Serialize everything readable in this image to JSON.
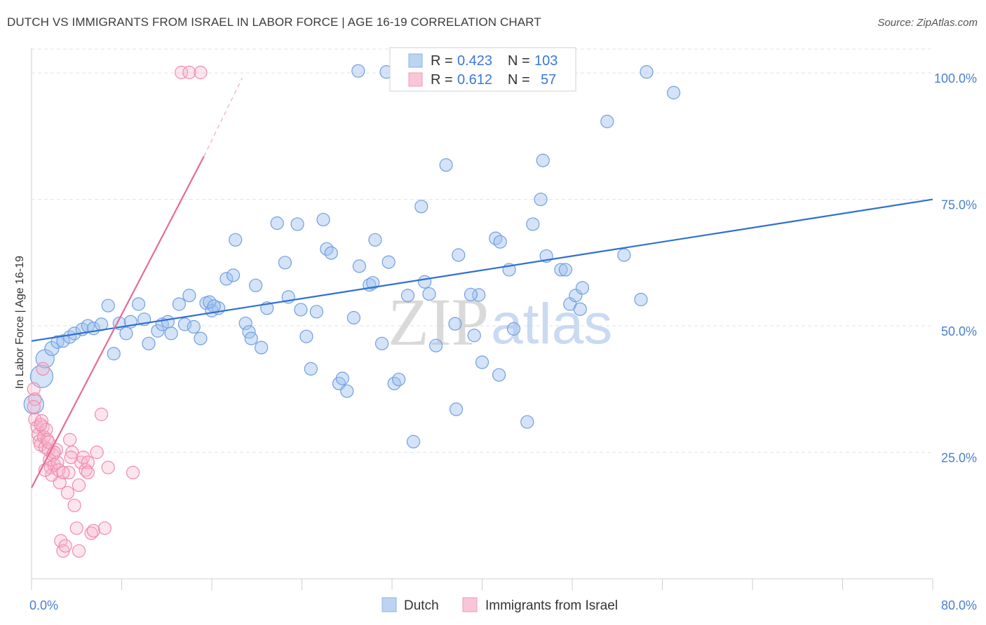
{
  "header": {
    "title": "DUTCH VS IMMIGRANTS FROM ISRAEL IN LABOR FORCE | AGE 16-19 CORRELATION CHART",
    "source": "Source: ZipAtlas.com"
  },
  "watermark": {
    "zip": "ZIP",
    "atlas": "atlas"
  },
  "colors": {
    "dutch": "#6fa0e0",
    "dutch_line": "#2f6fd0",
    "israel": "#f08aab",
    "israel_line": "#e46c95",
    "axis_text": "#4a7fd0"
  },
  "chart_data": {
    "type": "scatter",
    "title": "DUTCH VS IMMIGRANTS FROM ISRAEL IN LABOR FORCE | AGE 16-19 CORRELATION CHART",
    "xlabel": "",
    "ylabel": "In Labor Force | Age 16-19",
    "xlim": [
      0,
      80
    ],
    "ylim": [
      0,
      105
    ],
    "x_tick_labels": [
      "0.0%",
      "80.0%"
    ],
    "y_ticks": [
      25,
      50,
      75,
      100
    ],
    "y_tick_labels": [
      "25.0%",
      "50.0%",
      "75.0%",
      "100.0%"
    ],
    "grid": true,
    "legend": {
      "placement": "top-center",
      "entries": [
        {
          "r_label": "R =",
          "r_value": "0.423",
          "n_label": "N =",
          "n_value": "103"
        },
        {
          "r_label": "R =",
          "r_value": "0.612",
          "n_label": "N =",
          "n_value": "57"
        }
      ]
    },
    "bottom_legend": [
      "Dutch",
      "Immigrants from Israel"
    ],
    "series": [
      {
        "name": "Dutch",
        "trend": {
          "x": [
            0,
            80
          ],
          "y": [
            47,
            75
          ]
        },
        "points": [
          [
            0.2,
            34.5,
            14
          ],
          [
            0.9,
            40,
            16
          ],
          [
            1.2,
            43.5,
            13
          ],
          [
            1.8,
            45.5,
            10
          ],
          [
            2.3,
            46.8,
            9
          ],
          [
            2.8,
            47,
            9
          ],
          [
            3.4,
            47.8,
            9
          ],
          [
            3.8,
            48.5,
            9
          ],
          [
            4.5,
            49.3,
            9
          ],
          [
            5.0,
            50,
            9
          ],
          [
            5.5,
            49.5,
            9
          ],
          [
            6.2,
            50.3,
            9
          ],
          [
            6.8,
            54,
            9
          ],
          [
            7.3,
            44.5,
            9
          ],
          [
            7.8,
            50.5,
            9
          ],
          [
            8.4,
            48.5,
            9
          ],
          [
            9.5,
            54.3,
            9
          ],
          [
            10.0,
            51.3,
            9
          ],
          [
            10.4,
            46.5,
            9
          ],
          [
            11.2,
            49,
            9
          ],
          [
            11.6,
            50.3,
            9
          ],
          [
            12.1,
            50.8,
            9
          ],
          [
            12.4,
            48.5,
            9
          ],
          [
            13.1,
            54.3,
            9
          ],
          [
            13.6,
            50.3,
            9
          ],
          [
            14.0,
            56,
            9
          ],
          [
            14.4,
            49.8,
            9
          ],
          [
            15.0,
            47.5,
            9
          ],
          [
            15.5,
            54.5,
            9
          ],
          [
            16.0,
            53,
            9
          ],
          [
            16.6,
            53.5,
            9
          ],
          [
            17.3,
            59.3,
            9
          ],
          [
            17.9,
            60,
            9
          ],
          [
            18.1,
            67,
            9
          ],
          [
            19.0,
            50.5,
            9
          ],
          [
            19.3,
            48.8,
            9
          ],
          [
            19.5,
            47.5,
            9
          ],
          [
            19.9,
            58,
            9
          ],
          [
            20.4,
            45.7,
            9
          ],
          [
            20.9,
            53.5,
            9
          ],
          [
            21.8,
            70.3,
            9
          ],
          [
            22.5,
            62.5,
            9
          ],
          [
            22.8,
            55.7,
            9
          ],
          [
            23.6,
            70.1,
            9
          ],
          [
            23.9,
            53.2,
            9
          ],
          [
            24.4,
            47.9,
            9
          ],
          [
            24.8,
            41.5,
            9
          ],
          [
            25.3,
            52.8,
            9
          ],
          [
            25.9,
            71,
            9
          ],
          [
            26.2,
            65.2,
            9
          ],
          [
            26.6,
            64.4,
            9
          ],
          [
            27.3,
            38.6,
            9
          ],
          [
            27.6,
            39.6,
            9
          ],
          [
            28.0,
            37.1,
            9
          ],
          [
            28.6,
            51.6,
            9
          ],
          [
            29.1,
            61.8,
            9
          ],
          [
            30.0,
            58.1,
            9
          ],
          [
            30.5,
            67,
            9
          ],
          [
            31.1,
            46.5,
            9
          ],
          [
            31.7,
            62.6,
            9
          ],
          [
            32.2,
            38.6,
            9
          ],
          [
            32.6,
            39.4,
            9
          ],
          [
            33.4,
            56,
            9
          ],
          [
            33.9,
            27.1,
            9
          ],
          [
            34.6,
            73.6,
            9
          ],
          [
            34.9,
            58.7,
            9
          ],
          [
            35.3,
            56.3,
            9
          ],
          [
            35.9,
            46.1,
            9
          ],
          [
            36.8,
            81.8,
            9
          ],
          [
            37.6,
            50.4,
            9
          ],
          [
            37.7,
            33.5,
            9
          ],
          [
            37.9,
            64,
            9
          ],
          [
            39.3,
            48.1,
            9
          ],
          [
            39.7,
            56.1,
            9
          ],
          [
            40.0,
            42.8,
            9
          ],
          [
            41.2,
            67.3,
            9
          ],
          [
            41.5,
            40.3,
            9
          ],
          [
            41.6,
            66.6,
            9
          ],
          [
            42.4,
            61.1,
            9
          ],
          [
            42.8,
            49.4,
            9
          ],
          [
            44.5,
            70.1,
            9
          ],
          [
            45.2,
            75,
            9
          ],
          [
            45.4,
            82.7,
            9
          ],
          [
            45.7,
            63.8,
            9
          ],
          [
            47.0,
            61.1,
            9
          ],
          [
            47.4,
            61.1,
            9
          ],
          [
            47.8,
            54.3,
            9
          ],
          [
            48.3,
            56,
            9
          ],
          [
            48.7,
            53.3,
            9
          ],
          [
            48.9,
            57.5,
            9
          ],
          [
            51.1,
            90.4,
            9
          ],
          [
            52.6,
            64,
            9
          ],
          [
            54.1,
            55.2,
            9
          ],
          [
            54.6,
            100.2,
            9
          ],
          [
            57.0,
            96.1,
            9
          ],
          [
            29.0,
            100.4,
            9
          ],
          [
            44.0,
            31,
            9
          ],
          [
            30.3,
            58.5,
            9
          ],
          [
            31.5,
            100.2,
            9
          ],
          [
            39.0,
            56.2,
            9
          ],
          [
            15.8,
            54.7,
            9
          ],
          [
            8.8,
            50.8,
            9
          ],
          [
            16.2,
            53.9,
            9
          ]
        ]
      },
      {
        "name": "Immigrants from Israel",
        "trend": {
          "x": [
            0,
            15.3
          ],
          "y": [
            18,
            83.5
          ]
        },
        "trend_dashed": {
          "x": [
            15.3,
            18.7
          ],
          "y": [
            83.5,
            99
          ]
        },
        "points": [
          [
            0.2,
            37.5,
            9
          ],
          [
            0.3,
            35.5,
            9
          ],
          [
            0.2,
            34,
            9
          ],
          [
            0.3,
            31.5,
            9
          ],
          [
            0.5,
            30,
            9
          ],
          [
            0.6,
            28.5,
            9
          ],
          [
            0.7,
            27.2,
            9
          ],
          [
            0.8,
            26.5,
            9
          ],
          [
            0.9,
            31.2,
            9
          ],
          [
            1.0,
            30,
            9
          ],
          [
            1.1,
            28,
            9
          ],
          [
            1.2,
            26,
            9
          ],
          [
            1.3,
            29.5,
            9
          ],
          [
            1.4,
            27.5,
            9
          ],
          [
            1.5,
            25.5,
            9
          ],
          [
            1.6,
            23.5,
            9
          ],
          [
            1.7,
            22,
            9
          ],
          [
            1.8,
            20.5,
            9
          ],
          [
            1.9,
            24.5,
            9
          ],
          [
            2.0,
            22.5,
            9
          ],
          [
            2.2,
            25.5,
            9
          ],
          [
            2.3,
            23,
            9
          ],
          [
            2.4,
            21.5,
            9
          ],
          [
            2.5,
            19,
            9
          ],
          [
            2.6,
            7.5,
            9
          ],
          [
            2.8,
            5.5,
            9
          ],
          [
            3.0,
            6.5,
            9
          ],
          [
            3.2,
            17,
            9
          ],
          [
            3.3,
            21,
            9
          ],
          [
            3.4,
            27.5,
            9
          ],
          [
            3.6,
            25,
            9
          ],
          [
            3.8,
            14.5,
            9
          ],
          [
            4.0,
            10,
            9
          ],
          [
            4.2,
            18.5,
            9
          ],
          [
            4.4,
            23,
            9
          ],
          [
            4.6,
            24,
            9
          ],
          [
            4.8,
            21.5,
            9
          ],
          [
            5.0,
            23,
            9
          ],
          [
            5.3,
            9,
            9
          ],
          [
            5.8,
            25,
            9
          ],
          [
            6.2,
            32.5,
            9
          ],
          [
            1.0,
            41.5,
            9
          ],
          [
            0.8,
            30.5,
            9
          ],
          [
            1.5,
            27,
            9
          ],
          [
            2.0,
            25,
            9
          ],
          [
            2.8,
            21,
            9
          ],
          [
            3.5,
            24,
            9
          ],
          [
            4.2,
            5.5,
            9
          ],
          [
            5.0,
            21,
            9
          ],
          [
            5.5,
            9.5,
            9
          ],
          [
            6.5,
            10,
            9
          ],
          [
            1.2,
            21.5,
            9
          ],
          [
            6.8,
            22,
            9
          ],
          [
            13.3,
            100.1,
            9
          ],
          [
            14.0,
            100.1,
            9
          ],
          [
            15.0,
            100.1,
            9
          ],
          [
            9.0,
            21,
            9
          ]
        ]
      }
    ]
  }
}
